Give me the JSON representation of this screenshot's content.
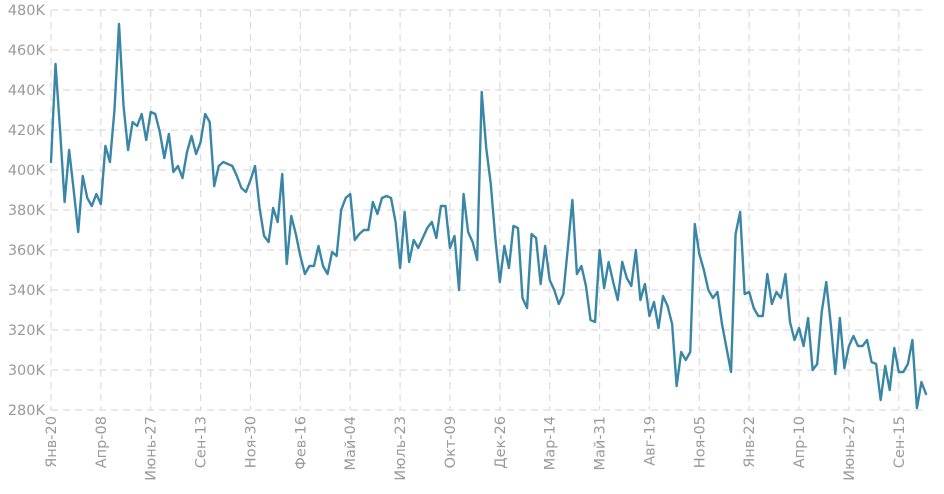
{
  "chart_data": {
    "type": "line",
    "title": "",
    "xlabel": "",
    "ylabel": "",
    "grid": true,
    "ylim": [
      280000,
      480000
    ],
    "y_ticks": [
      280000,
      300000,
      320000,
      340000,
      360000,
      380000,
      400000,
      420000,
      440000,
      460000,
      480000
    ],
    "y_tick_labels": [
      "280K",
      "300K",
      "320K",
      "340K",
      "360K",
      "380K",
      "400K",
      "420K",
      "440K",
      "460K",
      "480K"
    ],
    "x_tick_labels": [
      "Янв-20",
      "Апр-08",
      "Июнь-27",
      "Сен-13",
      "Ноя-30",
      "Фев-16",
      "Май-04",
      "Июль-23",
      "Окт-09",
      "Дек-26",
      "Мар-14",
      "Май-31",
      "Авг-19",
      "Ноя-05",
      "Янв-22",
      "Апр-10",
      "Июнь-27",
      "Сен-15"
    ],
    "x_tick_index": [
      0,
      11,
      22,
      33,
      44,
      55,
      66,
      77,
      88,
      99,
      110,
      121,
      132,
      143,
      154,
      165,
      176,
      187
    ],
    "series": [
      {
        "name": "",
        "color": "#3a86a6",
        "values": [
          404000,
          453000,
          420000,
          384000,
          410000,
          390000,
          369000,
          397000,
          386000,
          382000,
          388000,
          383000,
          412000,
          404000,
          430000,
          473000,
          432000,
          410000,
          424000,
          422000,
          428000,
          415000,
          429000,
          428000,
          419000,
          406000,
          418000,
          399000,
          402000,
          396000,
          409000,
          417000,
          408000,
          414000,
          428000,
          424000,
          392000,
          402000,
          404000,
          403000,
          402000,
          397000,
          391000,
          389000,
          395000,
          402000,
          381000,
          367000,
          364000,
          381000,
          374000,
          398000,
          353000,
          377000,
          368000,
          357000,
          348000,
          352000,
          352000,
          362000,
          352000,
          348000,
          359000,
          357000,
          380000,
          386000,
          388000,
          365000,
          368000,
          370000,
          370000,
          384000,
          378000,
          386000,
          387000,
          386000,
          374000,
          351000,
          379000,
          354000,
          365000,
          361000,
          366000,
          371000,
          374000,
          366000,
          382000,
          382000,
          361000,
          367000,
          340000,
          388000,
          369000,
          364000,
          355000,
          439000,
          411000,
          393000,
          366000,
          344000,
          362000,
          351000,
          372000,
          371000,
          336000,
          331000,
          368000,
          366000,
          343000,
          362000,
          345000,
          340000,
          333000,
          338000,
          361000,
          385000,
          348000,
          352000,
          342000,
          325000,
          324000,
          360000,
          341000,
          354000,
          344000,
          335000,
          354000,
          346000,
          342000,
          360000,
          335000,
          343000,
          327000,
          334000,
          321000,
          337000,
          332000,
          323000,
          292000,
          309000,
          305000,
          309000,
          373000,
          358000,
          350000,
          340000,
          336000,
          339000,
          323000,
          311000,
          299000,
          368000,
          379000,
          338000,
          339000,
          331000,
          327000,
          327000,
          348000,
          333000,
          339000,
          336000,
          348000,
          324000,
          315000,
          321000,
          312000,
          326000,
          300000,
          303000,
          329000,
          344000,
          323000,
          298000,
          326000,
          301000,
          312000,
          317000,
          312000,
          312000,
          315000,
          304000,
          303000,
          285000,
          302000,
          290000,
          311000,
          299000,
          299000,
          303000,
          315000,
          281000,
          294000,
          288000
        ]
      }
    ]
  }
}
